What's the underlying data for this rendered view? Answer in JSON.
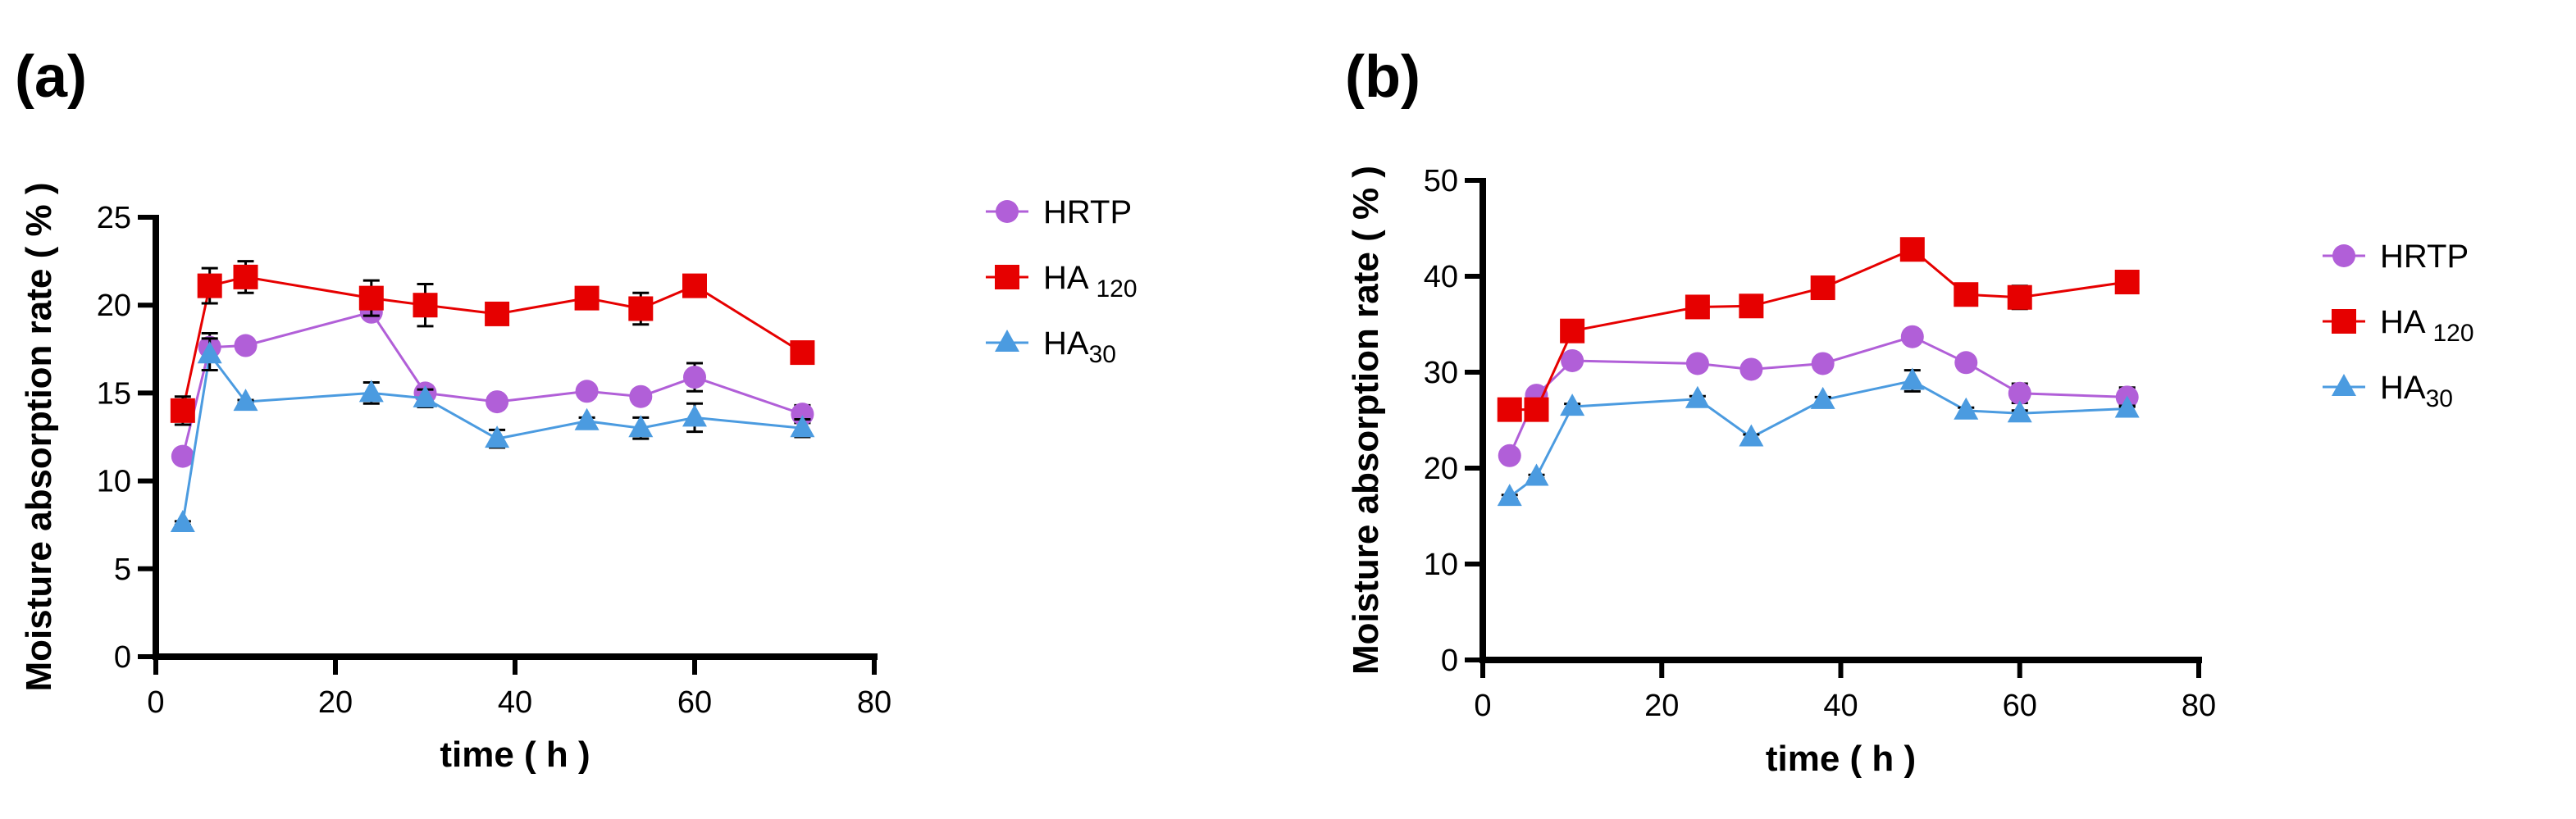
{
  "chart_data": [
    {
      "panel_label": "(a)",
      "type": "line",
      "xlabel": "time ( h )",
      "ylabel": "Moisture absorption rate ( % )",
      "xlim": [
        0,
        80
      ],
      "ylim": [
        0,
        25
      ],
      "xticks": [
        "0",
        "20",
        "40",
        "60",
        "80"
      ],
      "yticks": [
        "0",
        "5",
        "10",
        "15",
        "20",
        "25"
      ],
      "grid": false,
      "legend_position": "right",
      "x": [
        3,
        6,
        10,
        24,
        30,
        38,
        48,
        54,
        60,
        72
      ],
      "series": [
        {
          "name": "HRTP",
          "sub": "",
          "marker": "circle",
          "color": "#b15fd8",
          "values": [
            11.4,
            17.6,
            17.7,
            19.6,
            15.0,
            14.5,
            15.1,
            14.8,
            15.9,
            13.8
          ],
          "errors": [
            0.2,
            0.8,
            0.2,
            0.3,
            0.4,
            0.2,
            0.2,
            0.2,
            0.8,
            0.5
          ]
        },
        {
          "name": "HA ",
          "sub": "120",
          "marker": "square",
          "color": "#e60000",
          "values": [
            14.0,
            21.1,
            21.6,
            20.4,
            20.0,
            19.5,
            20.4,
            19.8,
            21.1,
            17.3
          ],
          "errors": [
            0.8,
            1.0,
            0.9,
            1.0,
            1.2,
            0.4,
            0.6,
            0.9,
            0.3,
            0.2
          ]
        },
        {
          "name": "HA",
          "sub": "30",
          "marker": "triangle",
          "color": "#4b9be0",
          "values": [
            7.6,
            17.2,
            14.5,
            15.0,
            14.7,
            12.4,
            13.4,
            13.0,
            13.6,
            13.0
          ],
          "errors": [
            0.1,
            0.9,
            0.1,
            0.6,
            0.5,
            0.5,
            0.2,
            0.6,
            0.8,
            0.5
          ]
        }
      ]
    },
    {
      "panel_label": "(b)",
      "type": "line",
      "xlabel": "time ( h )",
      "ylabel": "Moisture absorption rate ( % )",
      "xlim": [
        0,
        80
      ],
      "ylim": [
        0,
        50
      ],
      "xticks": [
        "0",
        "20",
        "40",
        "60",
        "80"
      ],
      "yticks": [
        "0",
        "10",
        "20",
        "30",
        "40",
        "50"
      ],
      "grid": false,
      "legend_position": "right",
      "x": [
        3,
        6,
        10,
        24,
        30,
        38,
        48,
        54,
        60,
        72
      ],
      "series": [
        {
          "name": "HRTP",
          "sub": "",
          "marker": "circle",
          "color": "#b15fd8",
          "values": [
            21.3,
            27.6,
            31.2,
            30.9,
            30.3,
            30.9,
            33.7,
            31.0,
            27.8,
            27.4
          ],
          "errors": [
            0.3,
            0.3,
            0.3,
            0.3,
            0.3,
            0.3,
            0.4,
            0.3,
            1.0,
            1.0
          ]
        },
        {
          "name": "HA ",
          "sub": "120",
          "marker": "square",
          "color": "#e60000",
          "values": [
            26.1,
            26.1,
            34.3,
            36.8,
            36.9,
            38.8,
            42.8,
            38.1,
            37.8,
            39.4
          ],
          "errors": [
            0.3,
            0.3,
            0.3,
            0.4,
            0.3,
            0.4,
            0.4,
            1.0,
            1.2,
            0.8
          ]
        },
        {
          "name": "HA",
          "sub": "30",
          "marker": "triangle",
          "color": "#4b9be0",
          "values": [
            17.0,
            19.1,
            26.4,
            27.2,
            23.2,
            27.1,
            29.1,
            26.0,
            25.7,
            26.2
          ],
          "errors": [
            0.2,
            0.2,
            0.3,
            0.3,
            0.3,
            0.3,
            1.1,
            0.3,
            0.3,
            0.3
          ]
        }
      ]
    }
  ]
}
